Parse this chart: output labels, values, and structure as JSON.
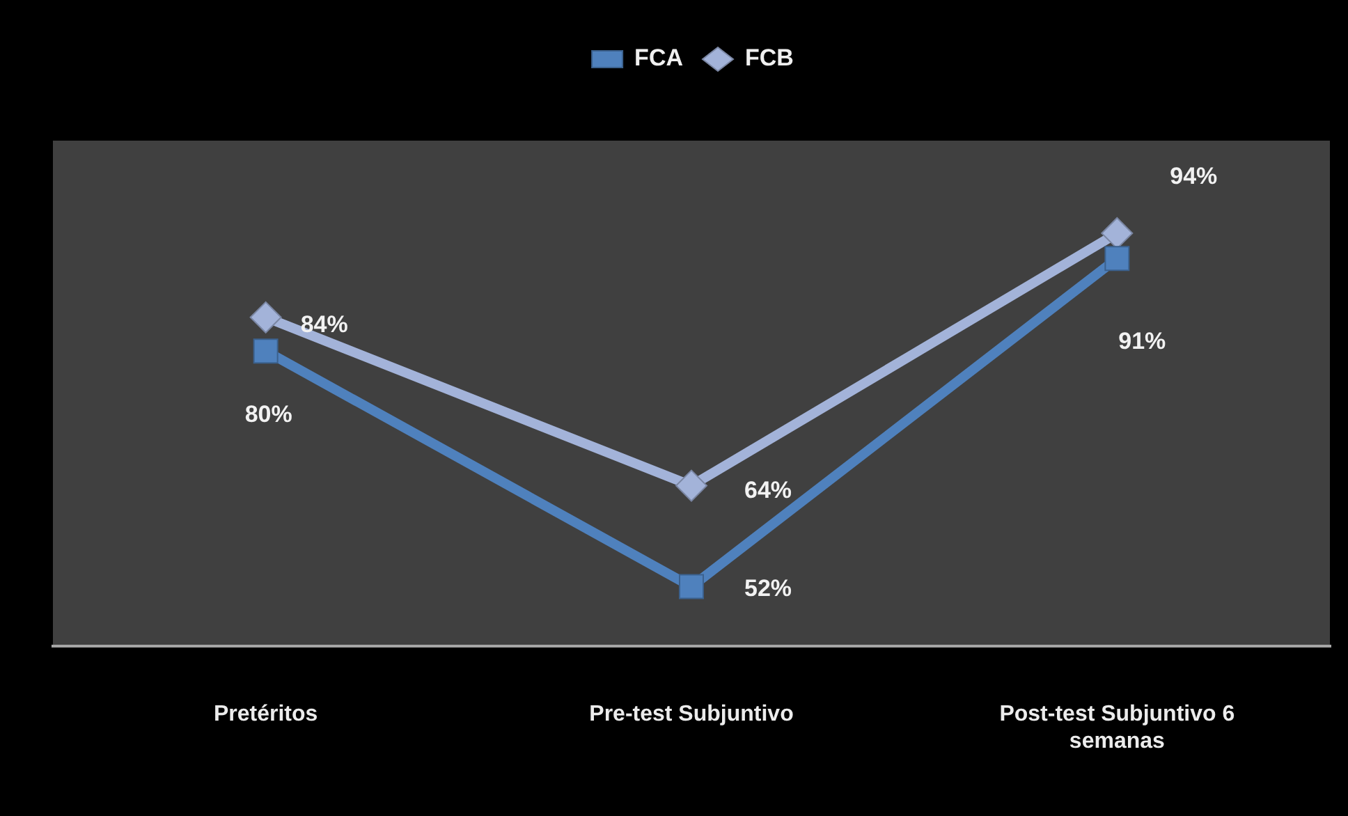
{
  "chart_data": {
    "type": "line",
    "categories": [
      "Pretéritos",
      "Pre-test Subjuntivo",
      "Post-test Subjuntivo 6 semanas"
    ],
    "series": [
      {
        "name": "FCA",
        "color": "#4f81bd",
        "marker": "square",
        "values": [
          80,
          52,
          91
        ],
        "value_labels": [
          "80%",
          "52%",
          "91%"
        ]
      },
      {
        "name": "FCB",
        "color": "#a3b3d9",
        "marker": "diamond",
        "values": [
          84,
          64,
          94
        ],
        "value_labels": [
          "84%",
          "64%",
          "94%"
        ]
      }
    ],
    "ylim": [
      45,
      105
    ],
    "tick_labels": "x",
    "legend": "top",
    "grid": false
  }
}
